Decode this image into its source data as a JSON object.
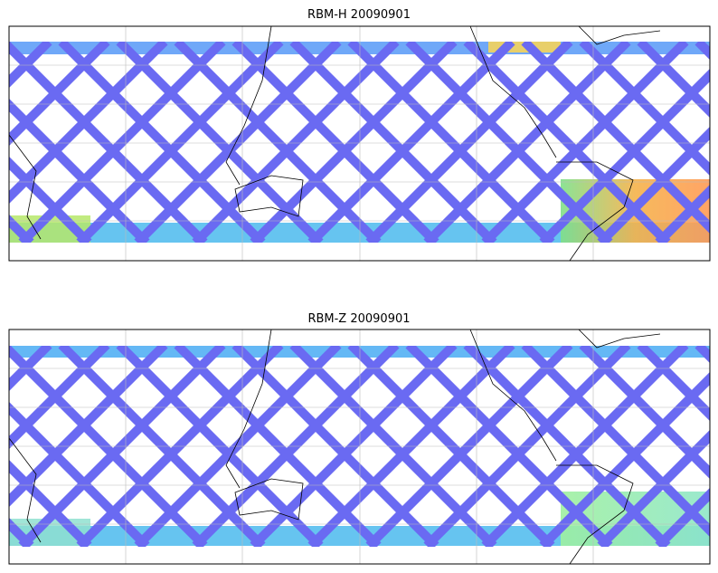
{
  "panels": [
    {
      "title": "RBM-H 20090901"
    },
    {
      "title": "RBM-Z 20090901"
    }
  ]
}
